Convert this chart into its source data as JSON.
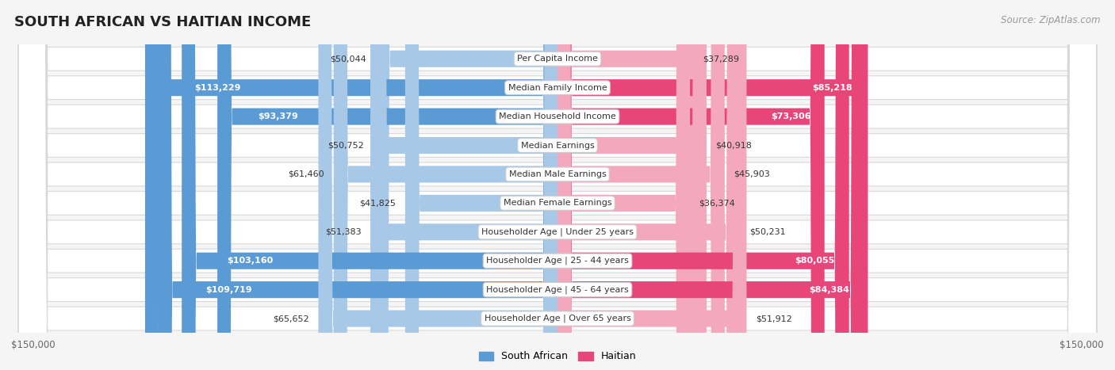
{
  "title": "SOUTH AFRICAN VS HAITIAN INCOME",
  "source": "Source: ZipAtlas.com",
  "categories": [
    "Per Capita Income",
    "Median Family Income",
    "Median Household Income",
    "Median Earnings",
    "Median Male Earnings",
    "Median Female Earnings",
    "Householder Age | Under 25 years",
    "Householder Age | 25 - 44 years",
    "Householder Age | 45 - 64 years",
    "Householder Age | Over 65 years"
  ],
  "south_african": [
    50044,
    113229,
    93379,
    50752,
    61460,
    41825,
    51383,
    103160,
    109719,
    65652
  ],
  "haitian": [
    37289,
    85218,
    73306,
    40918,
    45903,
    36374,
    50231,
    80055,
    84384,
    51912
  ],
  "sa_dark_threshold": 70000,
  "ha_dark_threshold": 60000,
  "max_value": 150000,
  "bar_color_sa_light": "#a8c8e8",
  "bar_color_sa_dark": "#5b9bd5",
  "bar_color_ha_light": "#f4a8be",
  "bar_color_ha_dark": "#e8457a",
  "bg_color": "#f5f5f5",
  "row_bg": "#ffffff",
  "row_border": "#d8d8d8",
  "title_color": "#222222",
  "source_color": "#999999",
  "axis_label_color": "#666666",
  "legend_sa_color": "#5b9bd5",
  "legend_ha_color": "#e8457a",
  "xlabel_left": "$150,000",
  "xlabel_right": "$150,000",
  "legend_sa": "South African",
  "legend_ha": "Haitian"
}
